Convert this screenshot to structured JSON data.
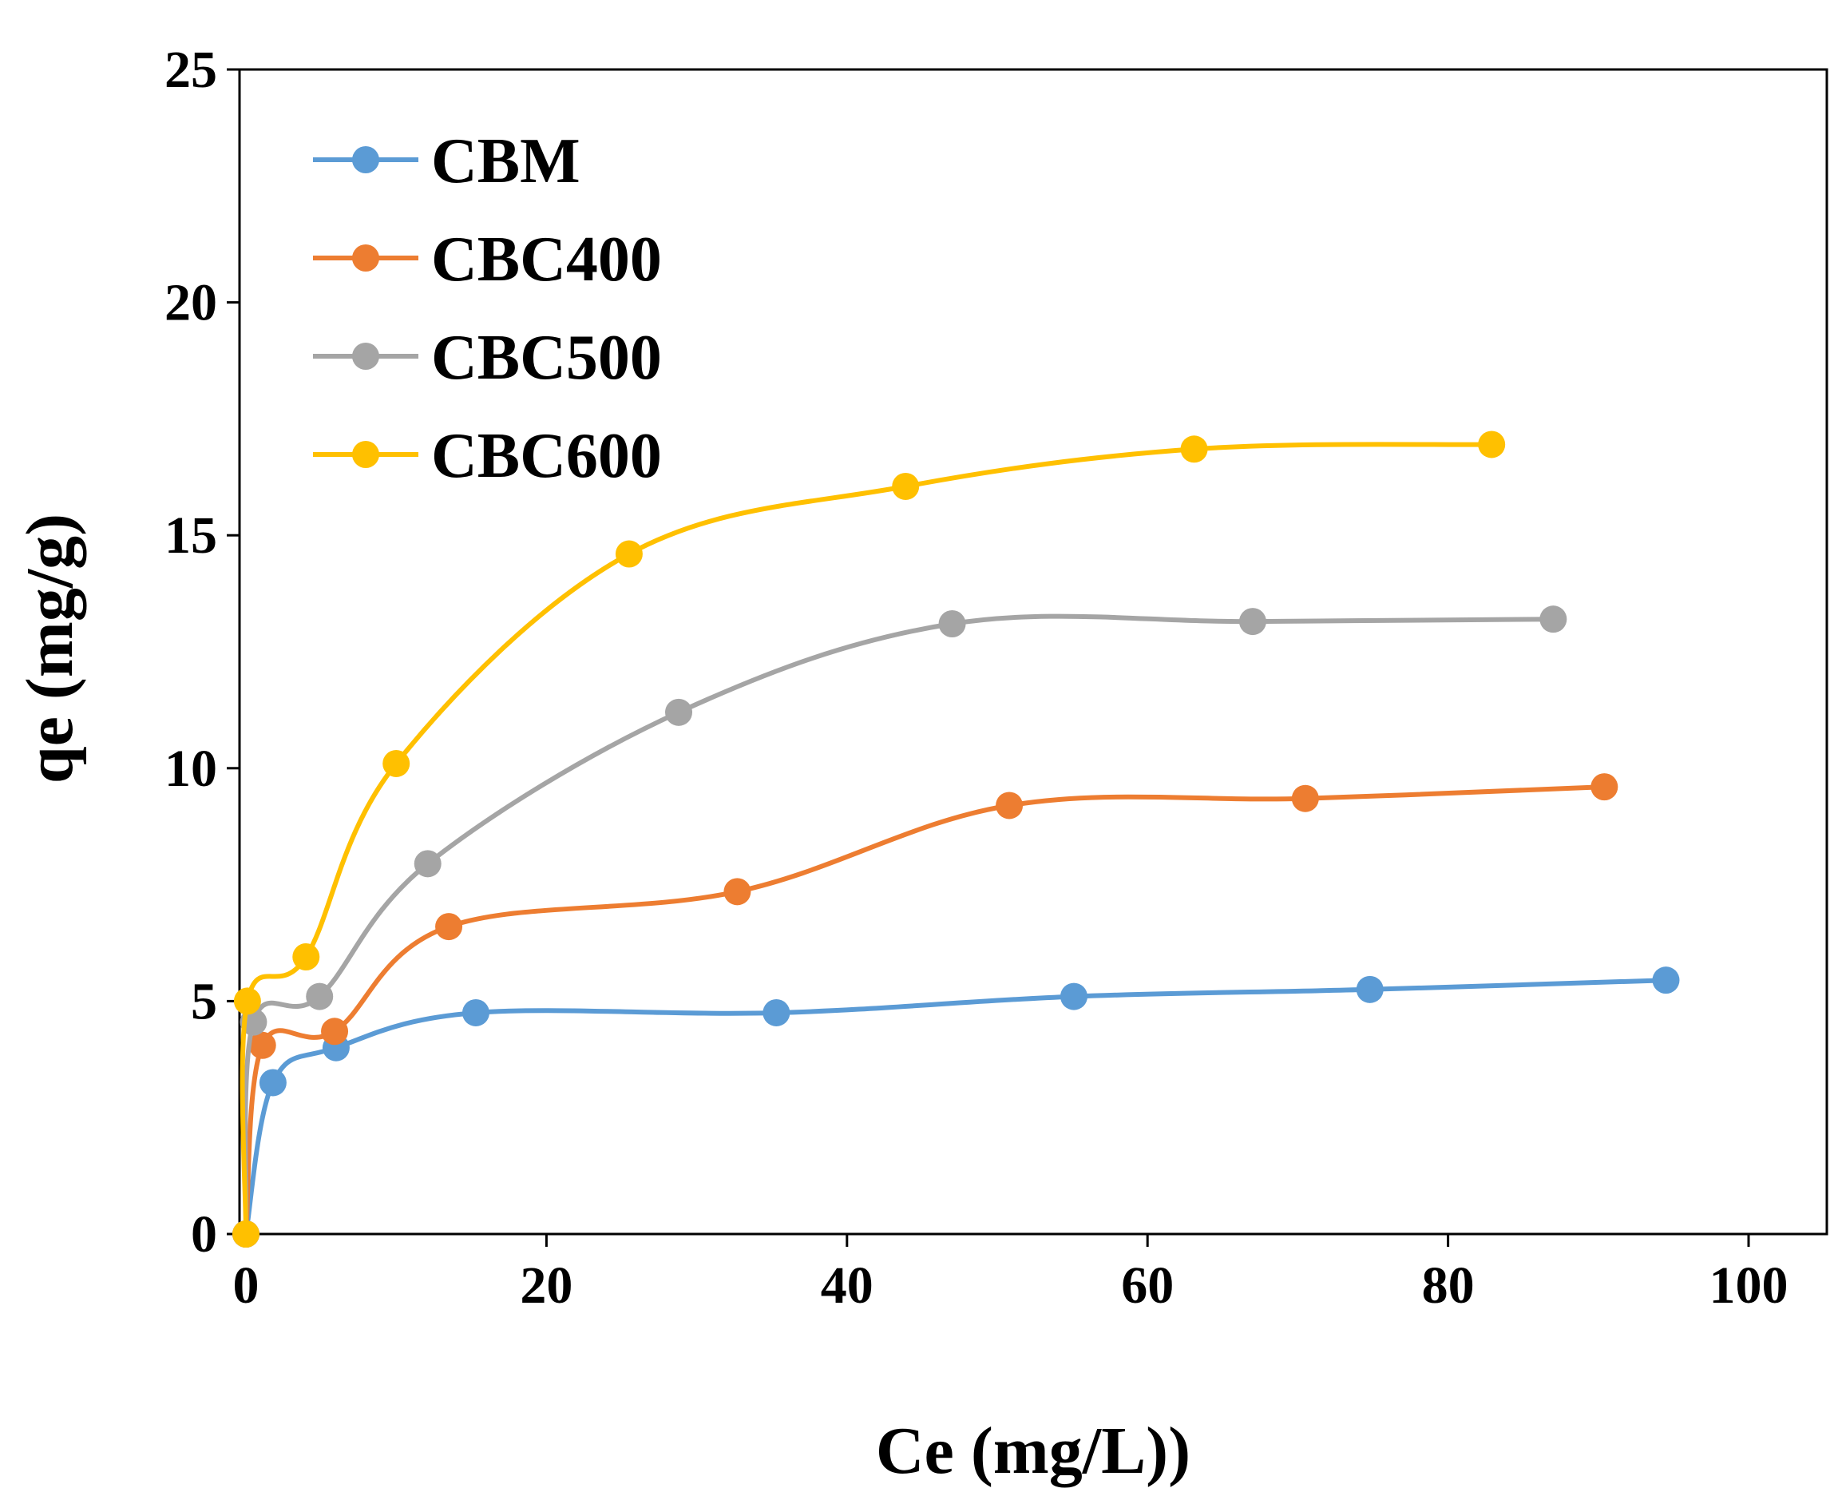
{
  "chart_data": {
    "type": "line",
    "title": "",
    "xlabel": "Ce (mg/L))",
    "ylabel": "qe (mg/g)",
    "xlim": [
      0,
      100
    ],
    "ylim": [
      0,
      25
    ],
    "x_ticks": [
      0,
      20,
      40,
      60,
      80,
      100
    ],
    "y_ticks": [
      0,
      5,
      10,
      15,
      20,
      25
    ],
    "grid": false,
    "smooth": true,
    "legend_position": "top-left",
    "series": [
      {
        "name": "CBM",
        "color": "#5b9bd5",
        "points": [
          [
            0,
            0
          ],
          [
            1.8,
            3.25
          ],
          [
            6,
            4.0
          ],
          [
            15.3,
            4.75
          ],
          [
            35.3,
            4.75
          ],
          [
            55.1,
            5.1
          ],
          [
            74.8,
            5.25
          ],
          [
            94.5,
            5.45
          ]
        ]
      },
      {
        "name": "CBC400",
        "color": "#ed7d31",
        "points": [
          [
            0,
            0
          ],
          [
            1.1,
            4.05
          ],
          [
            5.9,
            4.35
          ],
          [
            13.5,
            6.6
          ],
          [
            32.7,
            7.35
          ],
          [
            50.8,
            9.2
          ],
          [
            70.5,
            9.35
          ],
          [
            90.4,
            9.6
          ]
        ]
      },
      {
        "name": "CBC500",
        "color": "#a5a5a5",
        "points": [
          [
            0,
            0
          ],
          [
            0.5,
            4.55
          ],
          [
            4.9,
            5.1
          ],
          [
            12.1,
            7.95
          ],
          [
            28.8,
            11.2
          ],
          [
            47.0,
            13.1
          ],
          [
            67.0,
            13.15
          ],
          [
            87.0,
            13.2
          ]
        ]
      },
      {
        "name": "CBC600",
        "color": "#ffc000",
        "points": [
          [
            0,
            0
          ],
          [
            0.1,
            5.0
          ],
          [
            4.0,
            5.95
          ],
          [
            10.0,
            10.1
          ],
          [
            25.5,
            14.6
          ],
          [
            43.9,
            16.05
          ],
          [
            63.1,
            16.85
          ],
          [
            82.9,
            16.95
          ]
        ]
      }
    ]
  }
}
